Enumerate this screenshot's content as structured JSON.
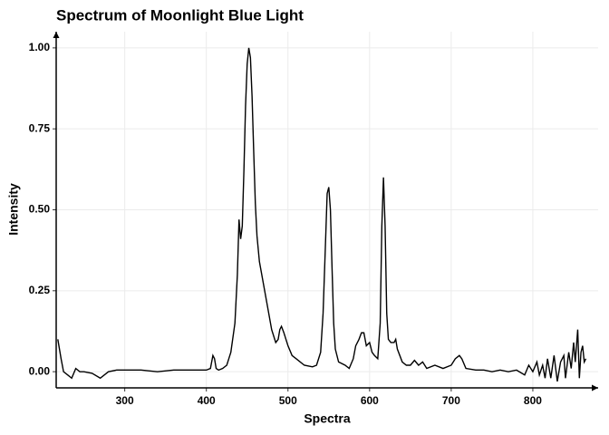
{
  "chart_data": {
    "type": "line",
    "title": "Spectrum of Moonlight Blue Light",
    "xlabel": "Spectra",
    "ylabel": "Intensity",
    "x": [
      218,
      220,
      222,
      225,
      230,
      235,
      240,
      245,
      250,
      260,
      270,
      280,
      290,
      300,
      320,
      340,
      360,
      380,
      400,
      405,
      408,
      410,
      412,
      415,
      420,
      425,
      430,
      435,
      438,
      440,
      442,
      444,
      446,
      448,
      450,
      452,
      454,
      456,
      458,
      460,
      462,
      465,
      470,
      475,
      480,
      485,
      488,
      490,
      492,
      495,
      500,
      505,
      510,
      520,
      530,
      535,
      540,
      543,
      546,
      548,
      550,
      552,
      554,
      556,
      558,
      562,
      570,
      575,
      580,
      583,
      587,
      590,
      593,
      596,
      600,
      603,
      606,
      610,
      613,
      615,
      617,
      619,
      621,
      623,
      626,
      630,
      632,
      634,
      640,
      645,
      650,
      655,
      660,
      665,
      670,
      680,
      690,
      700,
      705,
      710,
      713,
      718,
      730,
      740,
      750,
      760,
      770,
      780,
      790,
      795,
      800,
      805,
      808,
      812,
      815,
      818,
      822,
      826,
      830,
      834,
      838,
      840,
      844,
      847,
      850,
      852,
      855,
      857,
      859,
      861,
      863,
      865
    ],
    "series": [
      {
        "name": "Intensity",
        "color": "#000000",
        "values": [
          0.1,
          0.07,
          0.04,
          0.0,
          -0.01,
          -0.02,
          0.01,
          0.0,
          0.0,
          -0.005,
          -0.02,
          0.0,
          0.005,
          0.005,
          0.005,
          0.0,
          0.005,
          0.005,
          0.005,
          0.01,
          0.05,
          0.04,
          0.01,
          0.005,
          0.01,
          0.02,
          0.06,
          0.15,
          0.3,
          0.47,
          0.41,
          0.45,
          0.62,
          0.82,
          0.95,
          1.0,
          0.97,
          0.85,
          0.68,
          0.52,
          0.42,
          0.34,
          0.27,
          0.2,
          0.13,
          0.09,
          0.1,
          0.13,
          0.14,
          0.12,
          0.08,
          0.05,
          0.04,
          0.02,
          0.015,
          0.02,
          0.06,
          0.18,
          0.4,
          0.55,
          0.57,
          0.5,
          0.32,
          0.15,
          0.07,
          0.03,
          0.02,
          0.01,
          0.04,
          0.08,
          0.1,
          0.12,
          0.12,
          0.08,
          0.09,
          0.06,
          0.05,
          0.04,
          0.15,
          0.45,
          0.6,
          0.45,
          0.18,
          0.1,
          0.09,
          0.09,
          0.1,
          0.07,
          0.03,
          0.02,
          0.02,
          0.035,
          0.02,
          0.03,
          0.01,
          0.02,
          0.01,
          0.02,
          0.04,
          0.05,
          0.04,
          0.01,
          0.005,
          0.005,
          0.0,
          0.005,
          0.0,
          0.005,
          -0.01,
          0.02,
          0.0,
          0.03,
          -0.01,
          0.02,
          -0.02,
          0.04,
          -0.02,
          0.05,
          -0.03,
          0.03,
          0.05,
          -0.02,
          0.06,
          0.01,
          0.09,
          0.03,
          0.13,
          -0.02,
          0.06,
          0.08,
          0.03,
          0.04
        ]
      }
    ],
    "xlim": [
      216,
      880
    ],
    "ylim": [
      -0.05,
      1.05
    ],
    "xticks": [
      300,
      400,
      500,
      600,
      700,
      800
    ],
    "yticks": [
      {
        "value": 0,
        "label": "0.00"
      },
      {
        "value": 0.25,
        "label": "0.25"
      },
      {
        "value": 0.5,
        "label": "0.50"
      },
      {
        "value": 0.75,
        "label": "0.75"
      },
      {
        "value": 1,
        "label": "1.00"
      }
    ],
    "grid": true
  }
}
